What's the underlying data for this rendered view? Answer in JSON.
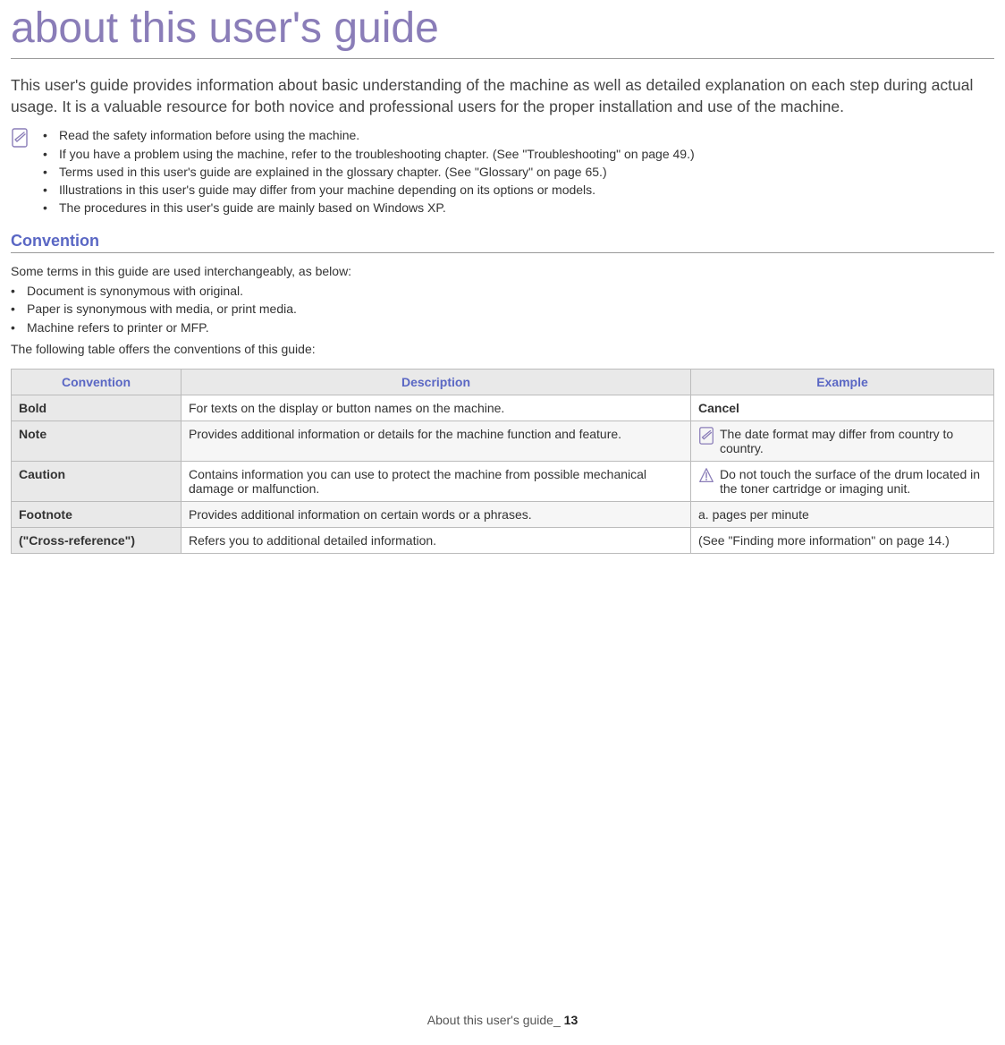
{
  "title": "about this user's guide",
  "intro": "This user's guide provides information about basic understanding of the machine as well as detailed explanation on each step during actual usage. It is a valuable resource for both novice and professional users for the proper installation and use of the machine.",
  "notes": [
    "Read the safety information before using the machine.",
    "If you have a problem using the machine, refer to the troubleshooting chapter. (See \"Troubleshooting\" on page 49.)",
    "Terms used in this user's guide are explained in the glossary chapter. (See \"Glossary\" on page 65.)",
    "Illustrations in this user's guide may differ from your machine depending on its options or models.",
    "The procedures in this user's guide are mainly based on Windows XP."
  ],
  "section_heading": "Convention",
  "convention_intro": "Some terms in this guide are used interchangeably, as below:",
  "convention_list": [
    "Document is synonymous with original.",
    "Paper is synonymous with media, or print media.",
    "Machine refers to printer or MFP."
  ],
  "table_intro": "The following table offers the conventions of this guide:",
  "table": {
    "headers": [
      "Convention",
      "Description",
      "Example"
    ],
    "rows": [
      {
        "conv": "Bold",
        "desc": "For texts on the display or button names on the machine.",
        "example": "Cancel",
        "example_bold": true,
        "icon": null,
        "shade": false
      },
      {
        "conv": "Note",
        "desc": "Provides additional information or details for the machine function and feature.",
        "example": "The date format may differ from country to country.",
        "example_bold": false,
        "icon": "note",
        "shade": true
      },
      {
        "conv": "Caution",
        "desc": "Contains information you can use to protect the machine from possible mechanical damage or malfunction.",
        "example": "Do not touch the surface of the drum located in the toner cartridge or imaging unit.",
        "example_bold": false,
        "icon": "caution",
        "shade": false
      },
      {
        "conv": "Footnote",
        "desc": "Provides additional information on certain words or a phrases.",
        "example": "a. pages per minute",
        "example_bold": false,
        "icon": null,
        "shade": true
      },
      {
        "conv": "(\"Cross-reference\")",
        "desc": "Refers you to additional detailed information.",
        "example": "(See \"Finding more information\" on page 14.)",
        "example_bold": false,
        "icon": null,
        "shade": false
      }
    ]
  },
  "footer": {
    "text": "About this user's guide_ ",
    "page": "13"
  },
  "colors": {
    "title": "#8a7db8",
    "heading": "#5a67c4",
    "border": "#bbbbbb",
    "th_bg": "#e9e9e9",
    "shade_bg": "#f6f6f6"
  }
}
